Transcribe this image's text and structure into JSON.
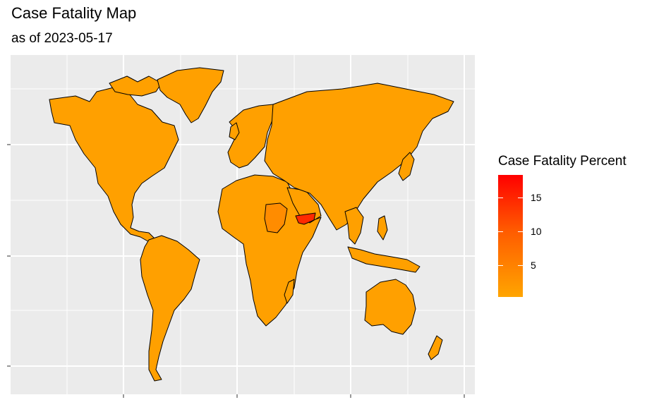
{
  "title": "Case Fatality Map",
  "subtitle": "as of 2023-05-17",
  "legend": {
    "title": "Case Fatality Percent",
    "labels": [
      "15",
      "10",
      "5"
    ],
    "low_color": "#ffa500",
    "high_color": "#ff0000"
  },
  "colors": {
    "panel_background": "#ebebeb",
    "gridline": "#ffffff",
    "border": "#000000",
    "base_fill": "#ffa000",
    "medium_fill": "#ff8c00",
    "high_fill": "#ff2a00"
  },
  "regions": [
    {
      "name": "North America",
      "level": "base"
    },
    {
      "name": "Greenland",
      "level": "base"
    },
    {
      "name": "South America",
      "level": "base"
    },
    {
      "name": "Europe",
      "level": "base"
    },
    {
      "name": "Africa",
      "level": "base"
    },
    {
      "name": "Sudan",
      "level": "medium"
    },
    {
      "name": "Yemen",
      "level": "high"
    },
    {
      "name": "Russia and Asia",
      "level": "base"
    },
    {
      "name": "Indonesia",
      "level": "base"
    },
    {
      "name": "Australia",
      "level": "base"
    },
    {
      "name": "New Zealand",
      "level": "base"
    }
  ]
}
